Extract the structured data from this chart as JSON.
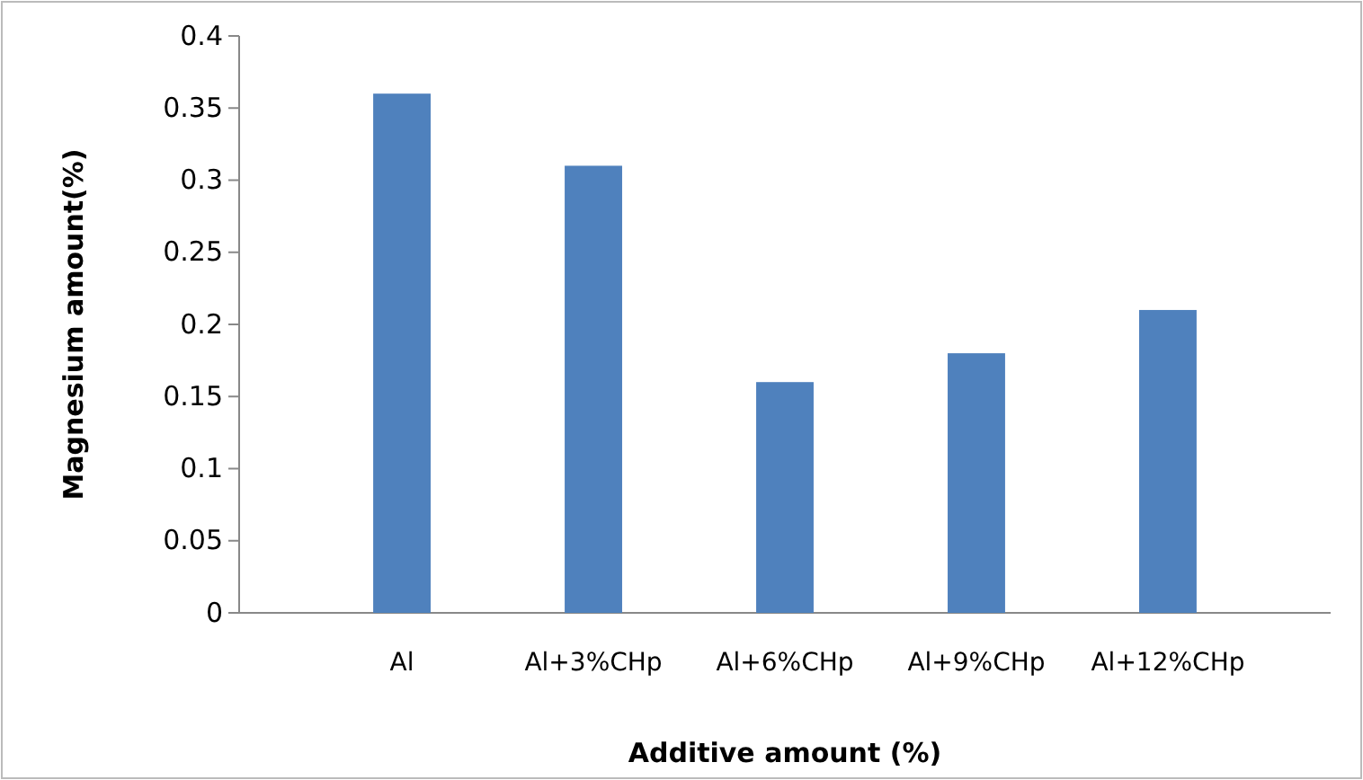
{
  "chart_data": {
    "type": "bar",
    "xlabel": "Additive amount (%)",
    "ylabel": "Magnesium amount(%)",
    "categories": [
      "Al",
      "Al+3%CHp",
      "Al+6%CHp",
      "Al+9%CHp",
      "Al+12%CHp"
    ],
    "values": [
      0.36,
      0.31,
      0.16,
      0.18,
      0.21
    ],
    "color": "#4f81bd",
    "ylim": [
      0,
      0.4
    ],
    "yticks": [
      0,
      0.05,
      0.1,
      0.15,
      0.2,
      0.25,
      0.3,
      0.35,
      0.4
    ],
    "grid": false
  }
}
